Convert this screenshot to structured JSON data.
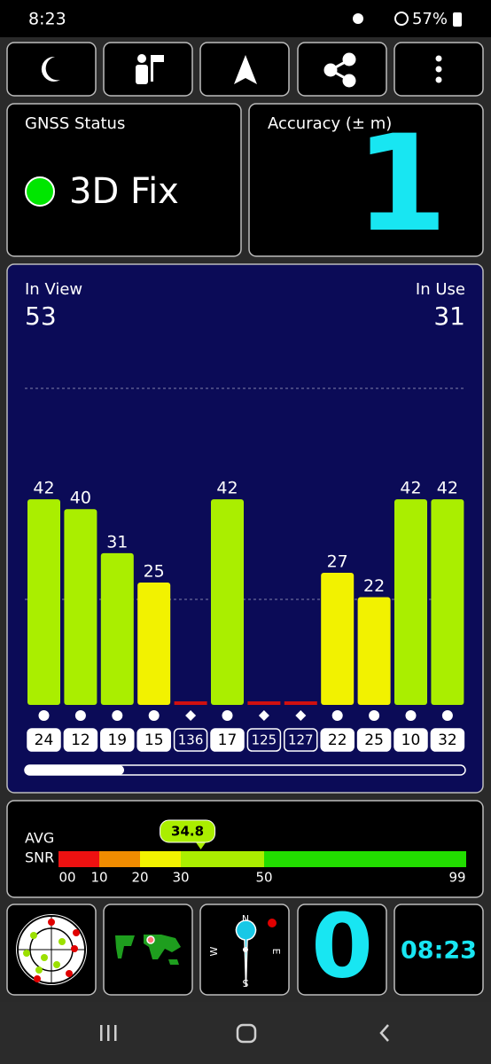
{
  "status_bar": {
    "time": "8:23",
    "battery": "57%"
  },
  "gnss_status": {
    "label": "GNSS Status",
    "value": "3D Fix"
  },
  "accuracy": {
    "label": "Accuracy (± m)",
    "value": "1"
  },
  "satellites": {
    "in_view_label": "In View",
    "in_view": "53",
    "in_use_label": "In Use",
    "in_use": "31",
    "bars": [
      {
        "id": "24",
        "snr": 42,
        "used": true
      },
      {
        "id": "12",
        "snr": 40,
        "used": true
      },
      {
        "id": "19",
        "snr": 31,
        "used": true
      },
      {
        "id": "15",
        "snr": 25,
        "used": true
      },
      {
        "id": "136",
        "snr": null,
        "used": false
      },
      {
        "id": "17",
        "snr": 42,
        "used": true
      },
      {
        "id": "125",
        "snr": null,
        "used": false
      },
      {
        "id": "127",
        "snr": null,
        "used": false
      },
      {
        "id": "22",
        "snr": 27,
        "used": true
      },
      {
        "id": "25",
        "snr": 22,
        "used": true
      },
      {
        "id": "10",
        "snr": 42,
        "used": true
      },
      {
        "id": "32",
        "snr": 42,
        "used": true
      }
    ]
  },
  "avg_snr": {
    "label_1": "AVG",
    "label_2": "SNR",
    "value": 34.8,
    "scale": [
      {
        "value": 0,
        "label": "00"
      },
      10,
      20,
      30,
      50,
      99
    ]
  },
  "tiles": {
    "compass": {
      "north": "N",
      "east": "E",
      "south": "S",
      "west": "W"
    },
    "count": "0",
    "clock": "08:23"
  }
}
